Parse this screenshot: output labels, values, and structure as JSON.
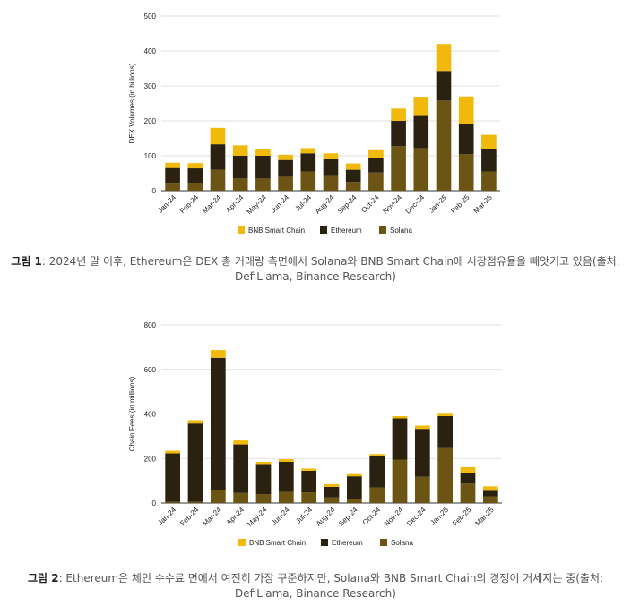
{
  "colors": {
    "solana": "#6b5414",
    "ethereum": "#2b2110",
    "bnb": "#f0b90b"
  },
  "chart_data": [
    {
      "type": "bar",
      "stacked": true,
      "ylabel": "DEX Volumes (in billions)",
      "ylim": [
        0,
        500
      ],
      "yticks": [
        "0",
        "100",
        "200",
        "300",
        "400",
        "500"
      ],
      "grid": true,
      "legend_position": "bottom",
      "categories": [
        "Jan-24",
        "Feb-24",
        "Mar-24",
        "Apr-24",
        "May-24",
        "Jun-24",
        "Jul-24",
        "Aug-24",
        "Sep-24",
        "Oct-24",
        "Nov-24",
        "Dec-24",
        "Jan-25",
        "Feb-25",
        "Mar-25"
      ],
      "series": [
        {
          "name": "Solana",
          "values": [
            20,
            22,
            60,
            35,
            35,
            40,
            55,
            42,
            25,
            52,
            128,
            122,
            258,
            105,
            55
          ]
        },
        {
          "name": "Ethereum",
          "values": [
            45,
            42,
            73,
            65,
            65,
            48,
            52,
            48,
            35,
            42,
            72,
            92,
            85,
            85,
            63
          ]
        },
        {
          "name": "BNB Smart Chain",
          "values": [
            15,
            15,
            47,
            30,
            18,
            15,
            15,
            17,
            18,
            22,
            35,
            55,
            77,
            80,
            42
          ]
        }
      ],
      "legend": [
        "BNB Smart Chain",
        "Ethereum",
        "Solana"
      ]
    },
    {
      "type": "bar",
      "stacked": true,
      "ylabel": "Chain Fees (in millions)",
      "ylim": [
        0,
        800
      ],
      "yticks": [
        "0",
        "200",
        "400",
        "600",
        "800"
      ],
      "grid": true,
      "legend_position": "bottom",
      "categories": [
        "Jan-24",
        "Feb-24",
        "Mar-24",
        "Apr-24",
        "May-24",
        "Jun-24",
        "Jul-24",
        "Aug-24",
        "Sep-24",
        "Oct-24",
        "Nov-24",
        "Dec-24",
        "Jan-25",
        "Feb-25",
        "Mar-25"
      ],
      "series": [
        {
          "name": "Solana",
          "values": [
            5,
            5,
            60,
            45,
            40,
            50,
            48,
            25,
            20,
            70,
            195,
            118,
            250,
            88,
            30
          ]
        },
        {
          "name": "Ethereum",
          "values": [
            218,
            352,
            592,
            218,
            135,
            135,
            97,
            48,
            100,
            140,
            185,
            215,
            140,
            45,
            25
          ]
        },
        {
          "name": "BNB Smart Chain",
          "values": [
            12,
            15,
            35,
            18,
            10,
            12,
            10,
            12,
            10,
            10,
            10,
            15,
            15,
            28,
            20
          ]
        }
      ],
      "legend": [
        "BNB Smart Chain",
        "Ethereum",
        "Solana"
      ]
    }
  ],
  "captions": [
    {
      "label": "그림 1",
      "text": ": 2024년 말 이후, Ethereum은 DEX 총 거래량 측면에서 Solana와 BNB Smart Chain에 시장점유율을 빼앗기고 있음(출처:",
      "text2": "DefiLlama, Binance Research)"
    },
    {
      "label": "그림 2",
      "text": ": Ethereum은 체인 수수료 면에서 여전히 가장 꾸준하지만, Solana와 BNB Smart Chain의 경쟁이 거세지는 중(출처:",
      "text2": "DefiLlama, Binance Research)"
    }
  ]
}
